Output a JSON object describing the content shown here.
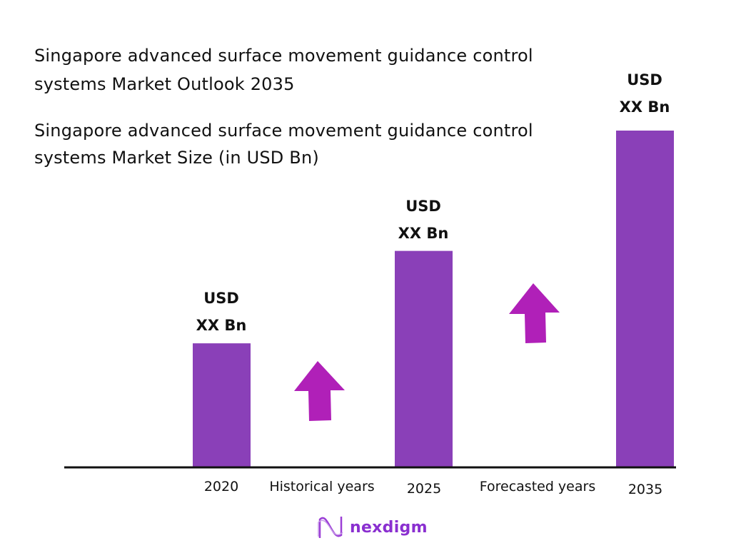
{
  "title": "Singapore advanced surface movement guidance control systems Market Outlook 2035",
  "chart_data": {
    "type": "bar",
    "title": "Singapore advanced surface movement guidance control systems Market Size (in USD Bn)",
    "categories": [
      "2020",
      "2025",
      "2035"
    ],
    "values": [
      36.7,
      64.2,
      100
    ],
    "value_units": "relative bar height, % of 2035 bar (no values printed)",
    "data_labels": [
      {
        "line1": "USD",
        "line2": "XX Bn"
      },
      {
        "line1": "USD",
        "line2": "XX Bn"
      },
      {
        "line1": "USD",
        "line2": "XX Bn"
      }
    ],
    "period_labels": [
      "Historical years",
      "Forecasted years"
    ],
    "ylim": [
      0,
      100
    ],
    "grid": false,
    "bar_color": "#8a40b8",
    "arrow_color": "#b020b8"
  },
  "logo": {
    "text": "nexdigm",
    "color": "#8a2fd0"
  }
}
